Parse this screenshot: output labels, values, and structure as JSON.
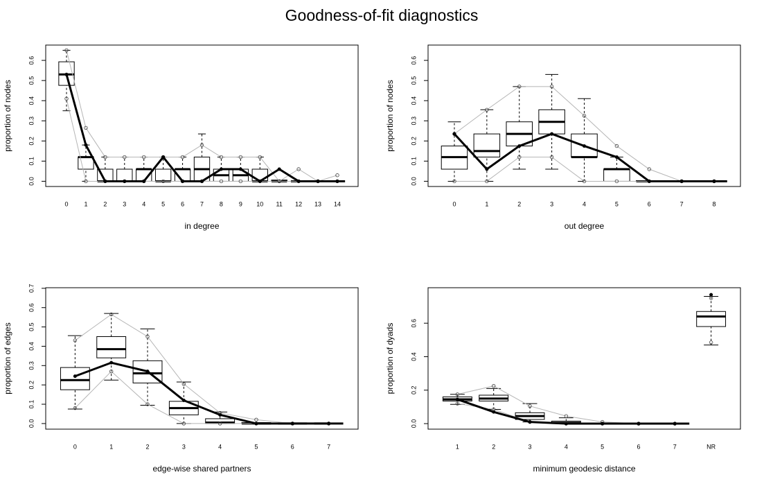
{
  "title": "Goodness-of-fit diagnostics",
  "chart_data": [
    {
      "type": "box",
      "xlabel": "in degree",
      "ylabel": "proportion of nodes",
      "categories": [
        "0",
        "1",
        "2",
        "3",
        "4",
        "5",
        "6",
        "7",
        "8",
        "9",
        "10",
        "11",
        "12",
        "13",
        "14"
      ],
      "boxes": {
        "whisker_low": [
          0.35,
          0,
          0,
          0,
          0,
          0,
          0,
          0,
          0,
          0,
          0,
          0,
          0,
          0,
          0
        ],
        "q1": [
          0.476,
          0.06,
          0,
          0,
          0,
          0,
          0,
          0,
          0,
          0,
          0,
          0,
          0,
          0,
          0
        ],
        "median": [
          0.53,
          0.12,
          0,
          0,
          0.06,
          0,
          0.06,
          0.06,
          0.03,
          0.03,
          0,
          0,
          0,
          0,
          0
        ],
        "q3": [
          0.593,
          0.12,
          0.06,
          0.06,
          0.06,
          0.06,
          0.06,
          0.12,
          0.06,
          0.06,
          0.06,
          0.006,
          0,
          0,
          0
        ],
        "whisker_high": [
          0.65,
          0.18,
          0.12,
          0.12,
          0.12,
          0.12,
          0.12,
          0.235,
          0.12,
          0.12,
          0.12,
          0,
          0,
          0,
          0
        ]
      },
      "observed": [
        0.53,
        0.18,
        0,
        0,
        0,
        0.12,
        0,
        0,
        0.06,
        0.06,
        0,
        0.06,
        0,
        0,
        0
      ],
      "sim_min": [
        0.41,
        0,
        0,
        0,
        0,
        0,
        0,
        0,
        0,
        0,
        0,
        0,
        0,
        0,
        0
      ],
      "sim_max": [
        0.65,
        0.265,
        0.12,
        0.12,
        0.12,
        0.12,
        0.12,
        0.18,
        0.12,
        0.12,
        0.12,
        0,
        0.06,
        0,
        0.03
      ],
      "ylim": [
        -0.026,
        0.676
      ],
      "yticks": [
        {
          "value": 0,
          "label": "0.0"
        },
        0.1,
        0.2,
        0.3,
        0.4,
        0.5,
        0.6
      ]
    },
    {
      "type": "box",
      "xlabel": "out degree",
      "ylabel": "proportion of nodes",
      "categories": [
        "0",
        "1",
        "2",
        "3",
        "4",
        "5",
        "6",
        "7",
        "8"
      ],
      "boxes": {
        "whisker_low": [
          0,
          0,
          0.06,
          0.06,
          0,
          0,
          0,
          0,
          0
        ],
        "q1": [
          0.06,
          0.12,
          0.175,
          0.235,
          0.12,
          0,
          0,
          0,
          0
        ],
        "median": [
          0.12,
          0.15,
          0.235,
          0.295,
          0.12,
          0.06,
          0,
          0,
          0
        ],
        "q3": [
          0.175,
          0.235,
          0.295,
          0.355,
          0.235,
          0.06,
          0.003,
          0,
          0
        ],
        "whisker_high": [
          0.295,
          0.355,
          0.47,
          0.53,
          0.41,
          0.12,
          0,
          0,
          0
        ]
      },
      "observed": [
        0.235,
        0.06,
        0.175,
        0.235,
        0.175,
        0.12,
        0,
        0,
        0
      ],
      "sim_min": [
        0,
        0,
        0.12,
        0.12,
        0,
        0,
        0,
        0,
        0
      ],
      "sim_max": [
        0.235,
        0.355,
        0.47,
        0.47,
        0.325,
        0.175,
        0.06,
        0,
        0
      ],
      "ylim": [
        -0.026,
        0.676
      ],
      "yticks": [
        {
          "value": 0,
          "label": "0.0"
        },
        0.1,
        0.2,
        0.3,
        0.4,
        0.5,
        0.6
      ]
    },
    {
      "type": "box",
      "xlabel": "edge-wise shared partners",
      "ylabel": "proportion of edges",
      "categories": [
        "0",
        "1",
        "2",
        "3",
        "4",
        "5",
        "6",
        "7"
      ],
      "boxes": {
        "whisker_low": [
          0.075,
          0.225,
          0.095,
          0,
          0,
          0,
          0,
          0
        ],
        "q1": [
          0.175,
          0.34,
          0.21,
          0.045,
          0,
          0,
          0,
          0
        ],
        "median": [
          0.225,
          0.385,
          0.26,
          0.08,
          0.005,
          0,
          0,
          0
        ],
        "q3": [
          0.29,
          0.45,
          0.325,
          0.115,
          0.025,
          0.005,
          0,
          0
        ],
        "whisker_high": [
          0.455,
          0.57,
          0.49,
          0.215,
          0.06,
          0,
          0,
          0
        ]
      },
      "observed": [
        0.245,
        0.315,
        0.27,
        0.12,
        0.045,
        0,
        0,
        0
      ],
      "sim_min": [
        0.08,
        0.27,
        0.1,
        0,
        0,
        0,
        0,
        0
      ],
      "sim_max": [
        0.43,
        0.565,
        0.45,
        0.205,
        0.055,
        0.02,
        0,
        0
      ],
      "ylim": [
        -0.029,
        0.703
      ],
      "yticks": [
        {
          "value": 0,
          "label": "0.0"
        },
        0.1,
        0.2,
        0.3,
        0.4,
        0.5,
        0.6,
        0.7
      ]
    },
    {
      "type": "box",
      "xlabel": "minimum geodesic distance",
      "ylabel": "proportion of dyads",
      "categories": [
        "1",
        "2",
        "3",
        "4",
        "5",
        "6",
        "7",
        "NR"
      ],
      "boxes": {
        "whisker_low": [
          0.115,
          0.085,
          0.01,
          0,
          0,
          0,
          0,
          0.47
        ],
        "q1": [
          0.135,
          0.135,
          0.025,
          0,
          0,
          0,
          0,
          0.58
        ],
        "median": [
          0.145,
          0.15,
          0.045,
          0.005,
          0,
          0,
          0,
          0.64
        ],
        "q3": [
          0.16,
          0.17,
          0.065,
          0.015,
          0,
          0,
          0,
          0.67
        ],
        "whisker_high": [
          0.175,
          0.21,
          0.12,
          0.035,
          0,
          0,
          0,
          0.76
        ]
      },
      "observed": [
        0.145,
        0.07,
        0.01,
        0,
        0,
        0,
        0,
        0.77
      ],
      "sim_min": [
        0.12,
        0.085,
        0.01,
        0,
        0,
        0,
        0,
        0.485
      ],
      "sim_max": [
        0.175,
        0.225,
        0.105,
        0.045,
        0.01,
        0,
        0,
        0.75
      ],
      "connect_last": false,
      "ylim": [
        -0.033,
        0.812
      ],
      "yticks": [
        {
          "value": 0,
          "label": "0.0"
        },
        0.2,
        0.4,
        0.6
      ]
    }
  ]
}
